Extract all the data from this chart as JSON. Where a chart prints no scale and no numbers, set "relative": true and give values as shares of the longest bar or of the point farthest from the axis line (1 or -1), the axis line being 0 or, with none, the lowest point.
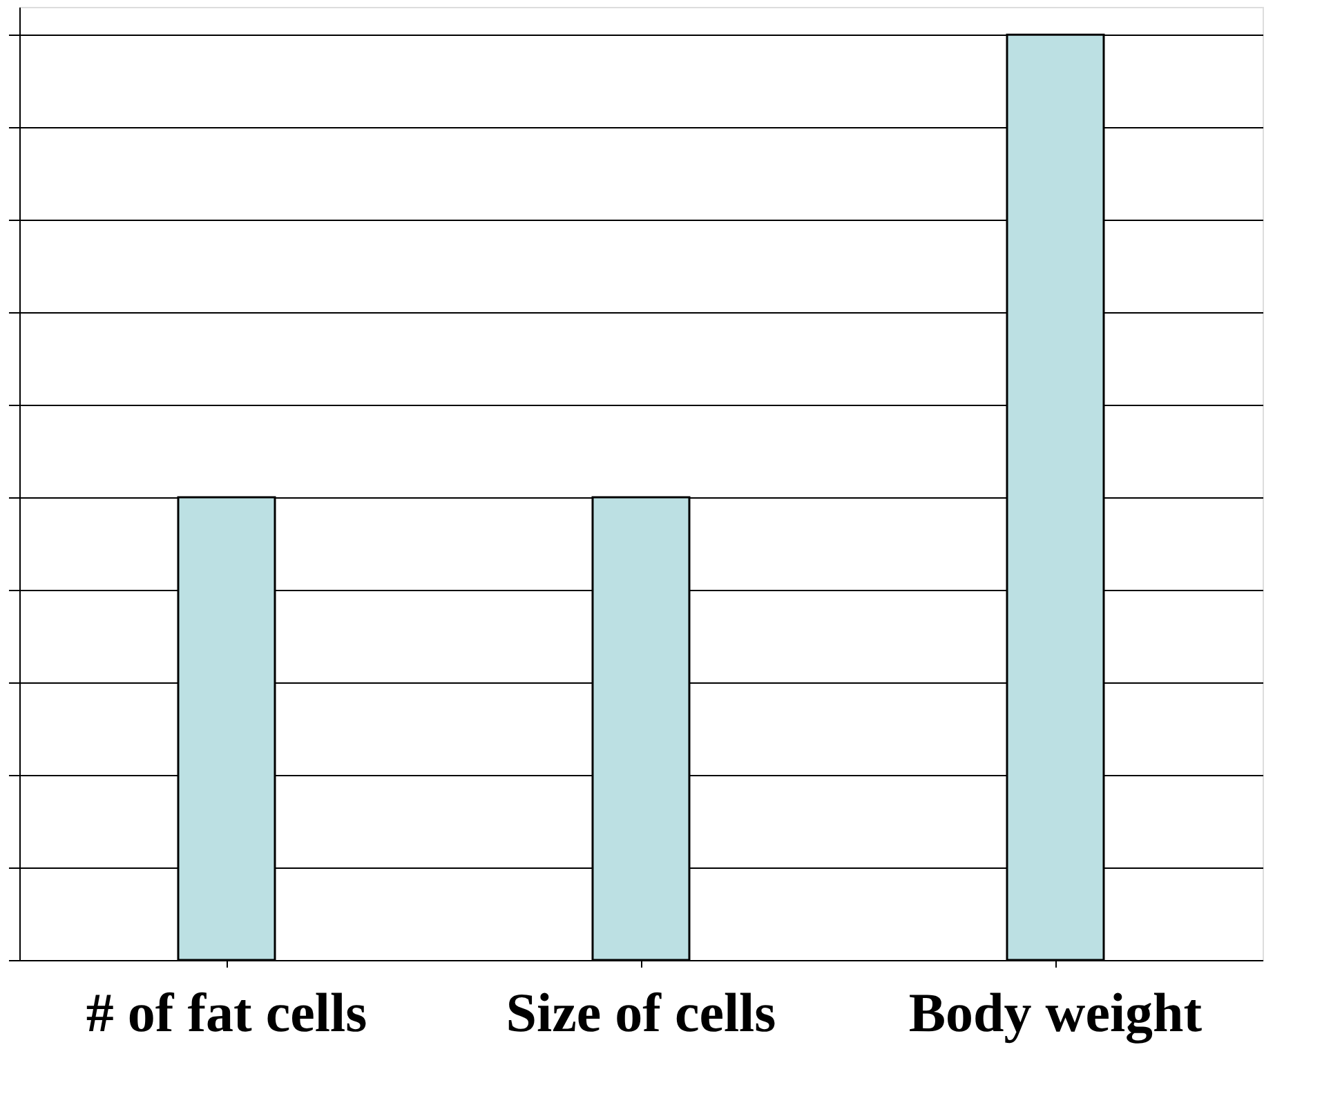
{
  "chart_data": {
    "type": "bar",
    "relative": true,
    "categories": [
      "# of fat cells",
      "Size of cells",
      "Body weight"
    ],
    "values": [
      0.5,
      0.5,
      1
    ],
    "color": "#bce0e3",
    "grid": "y"
  }
}
